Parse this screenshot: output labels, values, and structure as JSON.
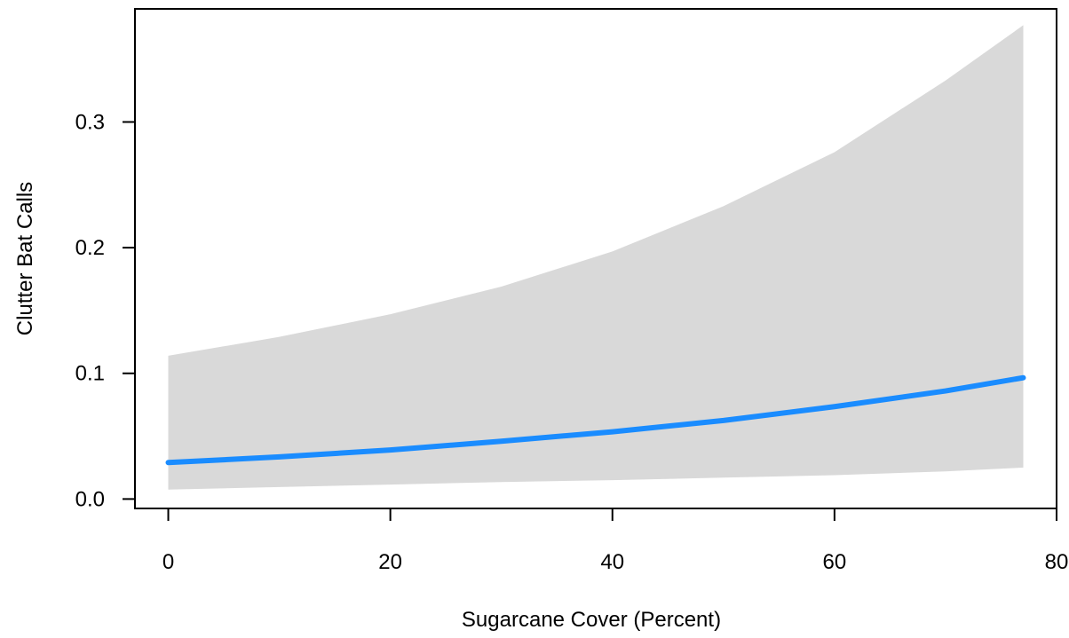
{
  "chart_data": {
    "type": "line",
    "xlabel": "Sugarcane Cover (Percent)",
    "ylabel": "Clutter Bat Calls",
    "xlim": [
      -3,
      80
    ],
    "ylim": [
      -0.0075,
      0.39
    ],
    "xticks": [
      0,
      20,
      40,
      60,
      80
    ],
    "yticks": [
      0.0,
      0.1,
      0.2,
      0.3
    ],
    "ytick_labels": [
      "0.0",
      "0.1",
      "0.2",
      "0.3"
    ],
    "grid": false,
    "series": [
      {
        "x": [
          0,
          10,
          20,
          30,
          40,
          50,
          60,
          70,
          77
        ],
        "y": [
          0.029,
          0.0335,
          0.039,
          0.046,
          0.0535,
          0.0625,
          0.0735,
          0.086,
          0.0965
        ],
        "lower": [
          0.0075,
          0.0095,
          0.0115,
          0.0135,
          0.015,
          0.017,
          0.019,
          0.022,
          0.025
        ],
        "upper": [
          0.114,
          0.129,
          0.147,
          0.169,
          0.197,
          0.233,
          0.276,
          0.333,
          0.377
        ]
      }
    ],
    "colors": {
      "line": "#1a8cff",
      "band": "#d9d9d9",
      "axis": "#000000"
    }
  }
}
